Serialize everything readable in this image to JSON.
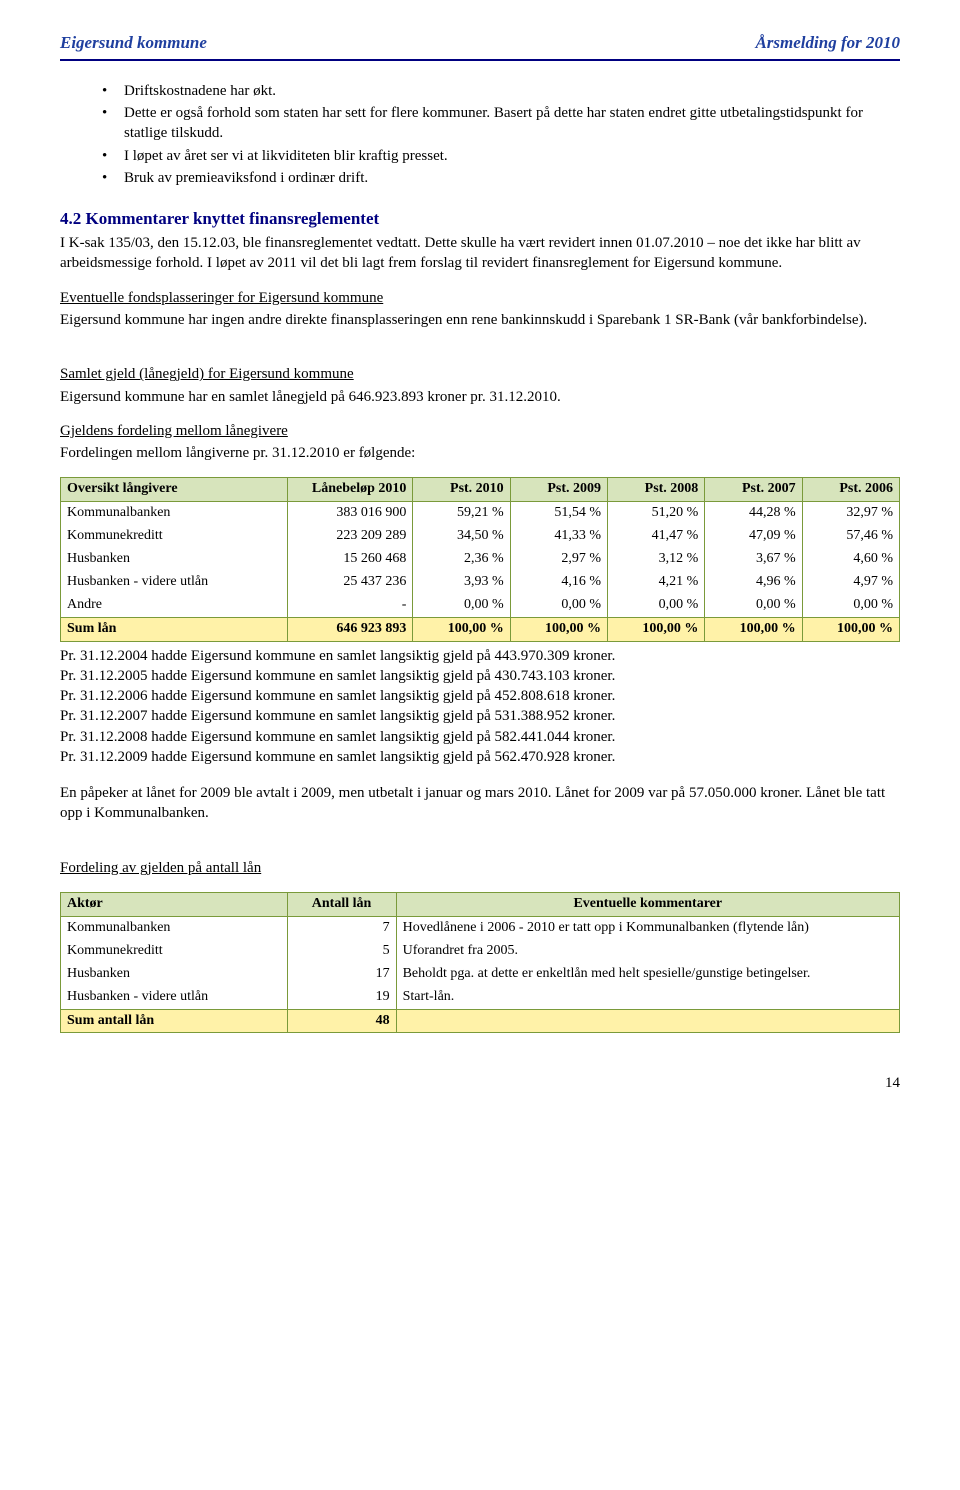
{
  "header": {
    "left": "Eigersund kommune",
    "right": "Årsmelding for 2010"
  },
  "bullets": [
    "Driftskostnadene har økt.",
    "Dette er også forhold som staten har sett for flere kommuner. Basert på dette har staten endret gitte utbetalingstidspunkt for statlige tilskudd.",
    "I løpet av året ser vi at likviditeten blir kraftig presset.",
    "Bruk av premieaviksfond i ordinær drift."
  ],
  "section42": {
    "title": "4.2 Kommentarer knyttet finansreglementet",
    "body": "I K-sak 135/03, den 15.12.03, ble finansreglementet vedtatt. Dette skulle ha vært revidert innen 01.07.2010 – noe det ikke har blitt av arbeidsmessige forhold. I løpet av 2011 vil det bli lagt frem forslag til revidert finansreglement for Eigersund kommune."
  },
  "fonds": {
    "title": "Eventuelle fondsplasseringer for Eigersund kommune",
    "body": "Eigersund kommune har ingen andre direkte finansplasseringen enn rene bankinnskudd i Sparebank 1 SR-Bank (vår bankforbindelse)."
  },
  "gjeld": {
    "title": "Samlet gjeld (lånegjeld) for Eigersund kommune",
    "body": "Eigersund kommune har en samlet lånegjeld på 646.923.893 kroner pr. 31.12.2010."
  },
  "fordeling": {
    "title": "Gjeldens fordeling mellom lånegivere",
    "intro": "Fordelingen mellom långiverne pr. 31.12.2010 er følgende:"
  },
  "table1": {
    "headers": [
      "Oversikt långivere",
      "Lånebeløp 2010",
      "Pst. 2010",
      "Pst. 2009",
      "Pst. 2008",
      "Pst. 2007",
      "Pst. 2006"
    ],
    "rows": [
      [
        "Kommunalbanken",
        "383 016 900",
        "59,21 %",
        "51,54 %",
        "51,20 %",
        "44,28 %",
        "32,97 %"
      ],
      [
        "Kommunekreditt",
        "223 209 289",
        "34,50 %",
        "41,33 %",
        "41,47 %",
        "47,09 %",
        "57,46 %"
      ],
      [
        "Husbanken",
        "15 260 468",
        "2,36 %",
        "2,97 %",
        "3,12 %",
        "3,67 %",
        "4,60 %"
      ],
      [
        "Husbanken - videre utlån",
        "25 437 236",
        "3,93 %",
        "4,16 %",
        "4,21 %",
        "4,96 %",
        "4,97 %"
      ],
      [
        "Andre",
        "-",
        "0,00 %",
        "0,00 %",
        "0,00 %",
        "0,00 %",
        "0,00 %"
      ]
    ],
    "sum": [
      "Sum lån",
      "646 923 893",
      "100,00 %",
      "100,00 %",
      "100,00 %",
      "100,00 %",
      "100,00 %"
    ]
  },
  "notes": [
    "Pr. 31.12.2004 hadde Eigersund kommune en samlet langsiktig gjeld på 443.970.309 kroner.",
    "Pr. 31.12.2005 hadde Eigersund kommune en samlet langsiktig gjeld på 430.743.103 kroner.",
    "Pr. 31.12.2006 hadde Eigersund kommune en samlet langsiktig gjeld på 452.808.618 kroner.",
    "Pr. 31.12.2007 hadde Eigersund kommune en samlet langsiktig gjeld på 531.388.952 kroner.",
    "Pr. 31.12.2008 hadde Eigersund kommune en samlet langsiktig gjeld på 582.441.044 kroner.",
    "Pr. 31.12.2009 hadde Eigersund kommune en samlet langsiktig gjeld på 562.470.928 kroner."
  ],
  "para_after_notes": "En påpeker at lånet for 2009 ble avtalt i 2009, men utbetalt i januar og mars 2010. Lånet for 2009 var på 57.050.000 kroner. Lånet ble tatt opp i Kommunalbanken.",
  "fordeling2": {
    "title": "Fordeling av gjelden på antall lån"
  },
  "table2": {
    "headers": [
      "Aktør",
      "Antall lån",
      "Eventuelle kommentarer"
    ],
    "rows": [
      [
        "Kommunalbanken",
        "7",
        "Hovedlånene i 2006 - 2010 er tatt opp i Kommunalbanken (flytende lån)"
      ],
      [
        "Kommunekreditt",
        "5",
        "Uforandret fra 2005."
      ],
      [
        "Husbanken",
        "17",
        "Beholdt pga. at dette er enkeltlån med helt spesielle/gunstige betingelser."
      ],
      [
        "Husbanken - videre utlån",
        "19",
        "Start-lån."
      ]
    ],
    "sum": [
      "Sum antall lån",
      "48",
      ""
    ]
  },
  "page_number": "14"
}
